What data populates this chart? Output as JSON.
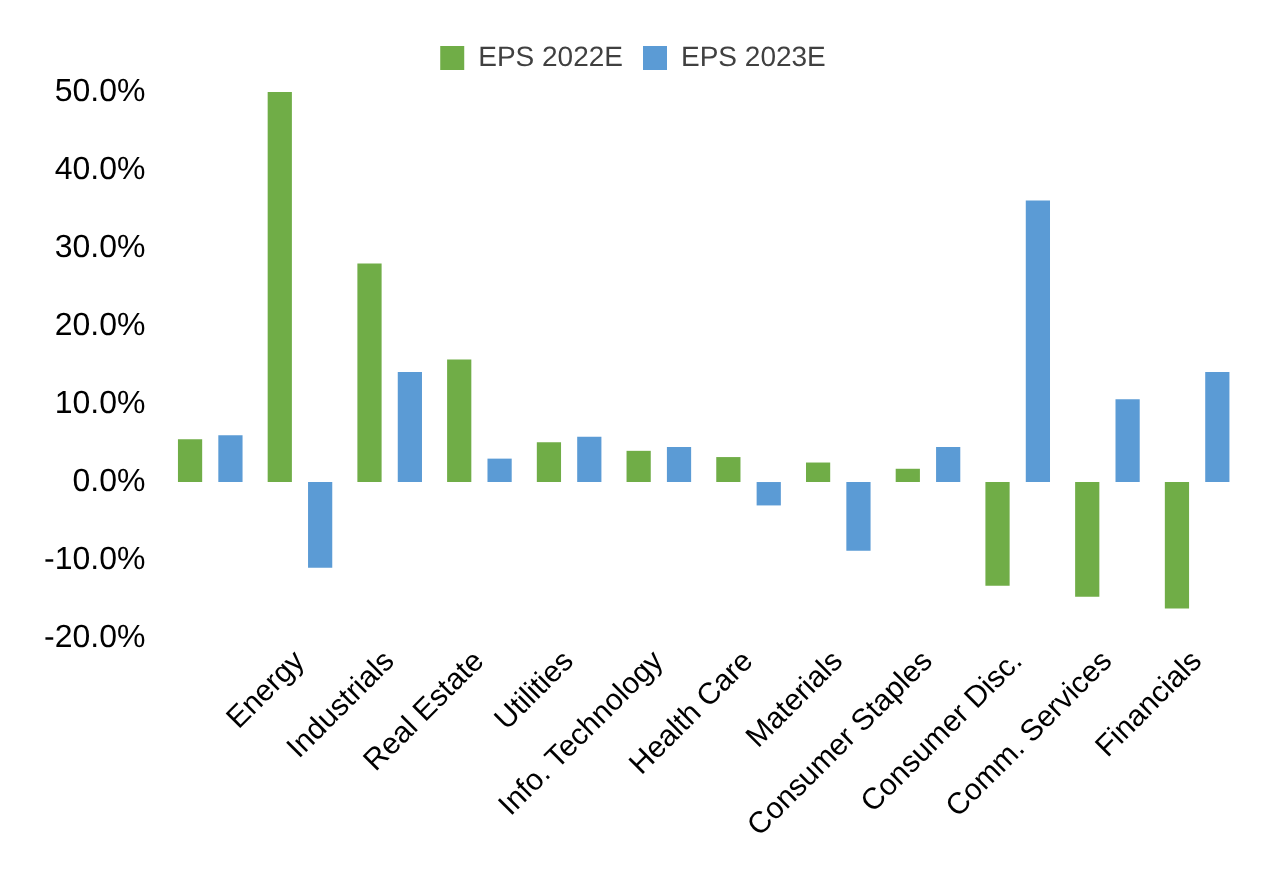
{
  "chart_data": {
    "type": "bar",
    "categories": [
      null,
      "Energy",
      "Industrials",
      "Real Estate",
      "Utilities",
      "Info. Technology",
      "Health Care",
      "Materials",
      "Consumer Staples",
      "Consumer Disc.",
      "Comm. Services",
      "Financials"
    ],
    "series": [
      {
        "name": "EPS 2022E",
        "color": "#70ad47",
        "values": [
          5.5,
          50,
          28,
          15.7,
          5.1,
          4,
          3.2,
          2.5,
          1.7,
          -13.3,
          -14.7,
          -16.2
        ]
      },
      {
        "name": "EPS 2023E",
        "color": "#5b9bd5",
        "values": [
          6,
          -11,
          14.1,
          3,
          5.8,
          4.5,
          -3,
          -8.8,
          4.5,
          36.1,
          10.6,
          14.1
        ]
      }
    ],
    "ylim": [
      -20,
      50
    ],
    "yticks": [
      {
        "value": -20,
        "label": "-20.0%"
      },
      {
        "value": -10,
        "label": "-10.0%"
      },
      {
        "value": 0,
        "label": "0.0%"
      },
      {
        "value": 10,
        "label": "10.0%"
      },
      {
        "value": 20,
        "label": "20.0%"
      },
      {
        "value": 30,
        "label": "30.0%"
      },
      {
        "value": 40,
        "label": "40.0%"
      },
      {
        "value": 50,
        "label": "50.0%"
      }
    ],
    "grid": false,
    "legend": "top"
  }
}
